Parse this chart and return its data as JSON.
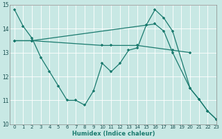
{
  "xlabel": "Humidex (Indice chaleur)",
  "xlim": [
    -0.5,
    23
  ],
  "ylim": [
    10,
    15
  ],
  "xticks": [
    0,
    1,
    2,
    3,
    4,
    5,
    6,
    7,
    8,
    9,
    10,
    11,
    12,
    13,
    14,
    15,
    16,
    17,
    18,
    19,
    20,
    21,
    22,
    23
  ],
  "yticks": [
    10,
    11,
    12,
    13,
    14,
    15
  ],
  "background_color": "#c8e8e4",
  "line_color": "#1a7a6e",
  "grid_color": "#ffffff",
  "line1_x": [
    0,
    1,
    2,
    3,
    4,
    5,
    6,
    7,
    8,
    9,
    10,
    11,
    12,
    13,
    14,
    15,
    16,
    17,
    18,
    20,
    21,
    22,
    23
  ],
  "line1_y": [
    14.8,
    14.1,
    13.6,
    12.8,
    12.2,
    11.6,
    11.0,
    11.0,
    10.8,
    11.4,
    12.55,
    12.2,
    12.55,
    13.1,
    13.2,
    14.15,
    14.2,
    13.9,
    13.0,
    11.5,
    11.05,
    10.55,
    10.2
  ],
  "line2_x": [
    0,
    2,
    10,
    11,
    14,
    18,
    20
  ],
  "line2_y": [
    13.5,
    13.5,
    13.3,
    13.3,
    13.3,
    13.1,
    13.0
  ],
  "line3_x": [
    0,
    2,
    15,
    16,
    17,
    18,
    20,
    21,
    22,
    23
  ],
  "line3_y": [
    13.5,
    13.5,
    14.15,
    14.8,
    14.45,
    13.9,
    11.5,
    11.05,
    10.55,
    10.2
  ]
}
